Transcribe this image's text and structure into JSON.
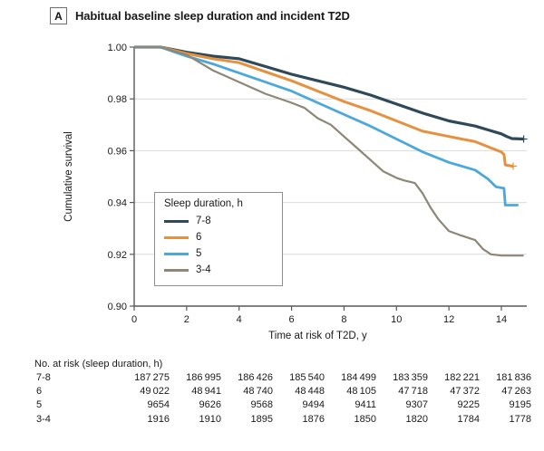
{
  "panel": {
    "label": "A",
    "title": "Habitual baseline sleep duration and incident T2D"
  },
  "chart_data": {
    "type": "line",
    "subtype": "kaplan-meier-survival",
    "title": "Habitual baseline sleep duration and incident T2D",
    "xlabel": "Time at risk of T2D, y",
    "ylabel": "Cumulative survival",
    "xlim": [
      0,
      15
    ],
    "ylim": [
      0.9,
      1.0
    ],
    "xticks": [
      "0",
      "2",
      "4",
      "6",
      "8",
      "10",
      "12",
      "14"
    ],
    "xtick_values": [
      0,
      2,
      4,
      6,
      8,
      10,
      12,
      14
    ],
    "yticks": [
      "1.00",
      "0.98",
      "0.96",
      "0.94",
      "0.92",
      "0.90"
    ],
    "ytick_values": [
      1.0,
      0.98,
      0.96,
      0.94,
      0.92,
      0.9
    ],
    "grid": "horizontal",
    "grid_values": [
      0.98,
      0.96,
      0.94,
      0.92
    ],
    "legend": {
      "title": "Sleep duration, h",
      "position": "inside-left"
    },
    "series": [
      {
        "name": "7-8",
        "color": "#2e4a5a",
        "width": 3.2,
        "end_tick": true,
        "points": [
          [
            0,
            1.0
          ],
          [
            1,
            1.0
          ],
          [
            2,
            0.998
          ],
          [
            3,
            0.9965
          ],
          [
            4,
            0.9955
          ],
          [
            5,
            0.9925
          ],
          [
            6,
            0.9895
          ],
          [
            7,
            0.987
          ],
          [
            8,
            0.9845
          ],
          [
            9,
            0.9815
          ],
          [
            10,
            0.978
          ],
          [
            11,
            0.9745
          ],
          [
            12,
            0.9715
          ],
          [
            13,
            0.9695
          ],
          [
            13.5,
            0.968
          ],
          [
            14,
            0.9665
          ],
          [
            14.2,
            0.9655
          ],
          [
            14.4,
            0.9647
          ],
          [
            14.85,
            0.9645
          ]
        ]
      },
      {
        "name": "6",
        "color": "#e5913f",
        "width": 3.0,
        "end_tick": true,
        "points": [
          [
            0,
            1.0
          ],
          [
            1,
            1.0
          ],
          [
            2,
            0.9975
          ],
          [
            3,
            0.9955
          ],
          [
            4,
            0.994
          ],
          [
            5,
            0.9905
          ],
          [
            6,
            0.987
          ],
          [
            7,
            0.983
          ],
          [
            8,
            0.979
          ],
          [
            9,
            0.9755
          ],
          [
            10,
            0.9715
          ],
          [
            11,
            0.9675
          ],
          [
            12,
            0.9655
          ],
          [
            13,
            0.9635
          ],
          [
            13.5,
            0.9615
          ],
          [
            14,
            0.9595
          ],
          [
            14.1,
            0.9585
          ],
          [
            14.15,
            0.9545
          ],
          [
            14.45,
            0.954
          ]
        ]
      },
      {
        "name": "5",
        "color": "#4aa8db",
        "width": 2.8,
        "end_tick": false,
        "points": [
          [
            0,
            1.0
          ],
          [
            1,
            1.0
          ],
          [
            2,
            0.9965
          ],
          [
            3,
            0.9935
          ],
          [
            4,
            0.99
          ],
          [
            5,
            0.9865
          ],
          [
            6,
            0.983
          ],
          [
            7,
            0.9785
          ],
          [
            8,
            0.974
          ],
          [
            9,
            0.9695
          ],
          [
            10,
            0.9645
          ],
          [
            11,
            0.9595
          ],
          [
            12,
            0.9555
          ],
          [
            13,
            0.9525
          ],
          [
            13.5,
            0.949
          ],
          [
            13.8,
            0.946
          ],
          [
            14.1,
            0.9455
          ],
          [
            14.15,
            0.939
          ],
          [
            14.65,
            0.939
          ]
        ]
      },
      {
        "name": "3-4",
        "color": "#8f8775",
        "width": 2.2,
        "end_tick": false,
        "points": [
          [
            0,
            1.0
          ],
          [
            1,
            1.0
          ],
          [
            2,
            0.997
          ],
          [
            3,
            0.991
          ],
          [
            4,
            0.9865
          ],
          [
            5,
            0.982
          ],
          [
            6,
            0.9785
          ],
          [
            6.5,
            0.9765
          ],
          [
            7,
            0.9725
          ],
          [
            7.5,
            0.97
          ],
          [
            8,
            0.9655
          ],
          [
            8.5,
            0.961
          ],
          [
            9,
            0.9565
          ],
          [
            9.5,
            0.952
          ],
          [
            10,
            0.9495
          ],
          [
            10.3,
            0.9485
          ],
          [
            10.7,
            0.9475
          ],
          [
            11,
            0.9435
          ],
          [
            11.3,
            0.938
          ],
          [
            11.6,
            0.9335
          ],
          [
            12,
            0.929
          ],
          [
            12.4,
            0.9275
          ],
          [
            13,
            0.9255
          ],
          [
            13.3,
            0.922
          ],
          [
            13.6,
            0.92
          ],
          [
            14,
            0.9195
          ],
          [
            14.85,
            0.9195
          ]
        ]
      }
    ]
  },
  "risk_table": {
    "header": "No. at risk (sleep duration, h)",
    "time_points": [
      0,
      2,
      4,
      6,
      8,
      10,
      12,
      14
    ],
    "rows": [
      {
        "label": "7-8",
        "values": [
          "187 275",
          "186 995",
          "186 426",
          "185 540",
          "184 499",
          "183 359",
          "182 221",
          "181 836"
        ]
      },
      {
        "label": "6",
        "values": [
          "49 022",
          "48 941",
          "48 740",
          "48 448",
          "48 105",
          "47 718",
          "47 372",
          "47 263"
        ]
      },
      {
        "label": "5",
        "values": [
          "9654",
          "9626",
          "9568",
          "9494",
          "9411",
          "9307",
          "9225",
          "9195"
        ]
      },
      {
        "label": "3-4",
        "values": [
          "1916",
          "1910",
          "1895",
          "1876",
          "1850",
          "1820",
          "1784",
          "1778"
        ]
      }
    ]
  },
  "colors": {
    "axis": "#58595b",
    "grid": "#dcdcdc",
    "text": "#1a1a1a",
    "series_7_8": "#2e4a5a",
    "series_6": "#e5913f",
    "series_5": "#4aa8db",
    "series_3_4": "#8f8775"
  }
}
